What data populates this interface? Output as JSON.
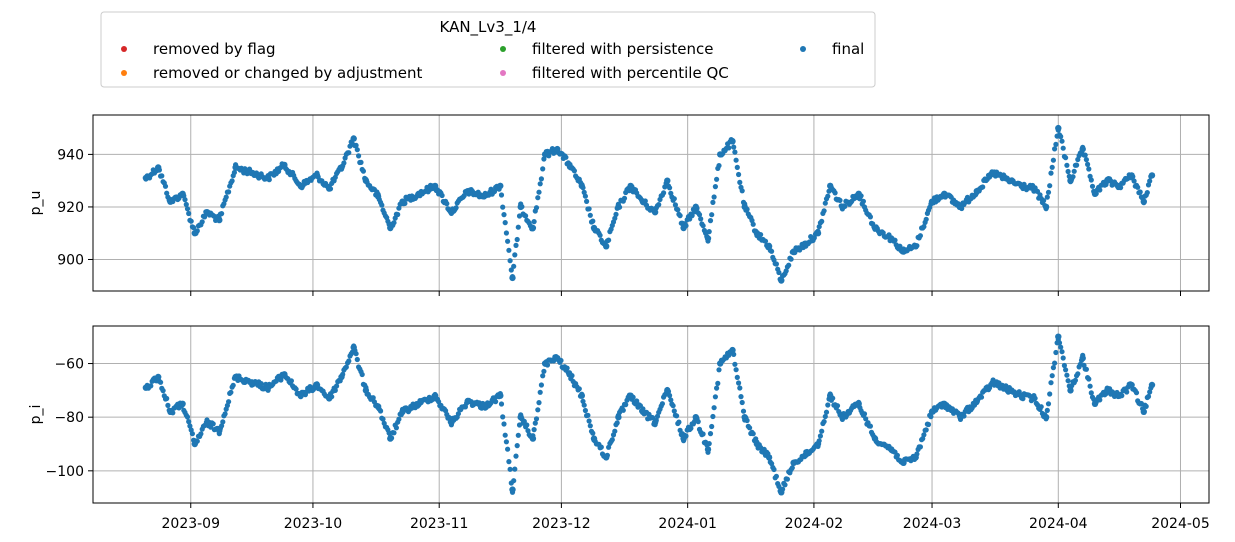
{
  "chart_data": {
    "type": "scatter",
    "legend": {
      "title": "KAN_Lv3_1/4",
      "placement": "top-left",
      "entries": [
        {
          "label": "removed by flag",
          "color": "#d62728"
        },
        {
          "label": "removed or changed by adjustment",
          "color": "#ff7f0e"
        },
        {
          "label": "filtered with persistence",
          "color": "#2ca02c"
        },
        {
          "label": "filtered with percentile QC",
          "color": "#e377c2"
        },
        {
          "label": "final",
          "color": "#1f77b4"
        }
      ]
    },
    "x_axis": {
      "type": "date",
      "range": [
        "2023-08-08",
        "2024-05-08"
      ],
      "tick_dates": [
        "2023-09-01",
        "2023-10-01",
        "2023-11-01",
        "2023-12-01",
        "2024-01-01",
        "2024-02-01",
        "2024-03-01",
        "2024-04-01",
        "2024-05-01"
      ],
      "tick_labels": [
        "2023-09",
        "2023-10",
        "2023-11",
        "2023-12",
        "2024-01",
        "2024-02",
        "2024-03",
        "2024-04",
        "2024-05"
      ]
    },
    "grid": true,
    "panels": [
      {
        "ylabel": "p_u",
        "ylim": [
          888,
          955
        ],
        "yticks": [
          900,
          920,
          940
        ],
        "ytick_labels": [
          "900",
          "920",
          "940"
        ],
        "series": [
          {
            "name": "final",
            "color": "#1f77b4",
            "x": [
              "2023-08-21",
              "2023-08-24",
              "2023-08-27",
              "2023-08-30",
              "2023-09-02",
              "2023-09-05",
              "2023-09-08",
              "2023-09-12",
              "2023-09-16",
              "2023-09-20",
              "2023-09-24",
              "2023-09-28",
              "2023-10-02",
              "2023-10-05",
              "2023-10-08",
              "2023-10-11",
              "2023-10-14",
              "2023-10-17",
              "2023-10-20",
              "2023-10-23",
              "2023-10-27",
              "2023-10-31",
              "2023-11-04",
              "2023-11-08",
              "2023-11-12",
              "2023-11-16",
              "2023-11-19",
              "2023-11-21",
              "2023-11-24",
              "2023-11-27",
              "2023-11-30",
              "2023-12-03",
              "2023-12-06",
              "2023-12-09",
              "2023-12-12",
              "2023-12-15",
              "2023-12-18",
              "2023-12-21",
              "2023-12-24",
              "2023-12-27",
              "2023-12-31",
              "2024-01-03",
              "2024-01-06",
              "2024-01-09",
              "2024-01-12",
              "2024-01-15",
              "2024-01-18",
              "2024-01-21",
              "2024-01-24",
              "2024-01-27",
              "2024-01-30",
              "2024-02-02",
              "2024-02-05",
              "2024-02-08",
              "2024-02-12",
              "2024-02-16",
              "2024-02-20",
              "2024-02-23",
              "2024-02-26",
              "2024-03-01",
              "2024-03-04",
              "2024-03-08",
              "2024-03-12",
              "2024-03-16",
              "2024-03-20",
              "2024-03-23",
              "2024-03-26",
              "2024-03-29",
              "2024-04-01",
              "2024-04-04",
              "2024-04-07",
              "2024-04-10",
              "2024-04-13",
              "2024-04-16",
              "2024-04-19",
              "2024-04-22",
              "2024-04-24"
            ],
            "y": [
              931,
              935,
              922,
              925,
              910,
              918,
              915,
              935,
              933,
              931,
              936,
              928,
              932,
              927,
              935,
              946,
              930,
              924,
              912,
              922,
              925,
              928,
              918,
              926,
              924,
              928,
              893,
              920,
              912,
              940,
              942,
              936,
              928,
              912,
              905,
              920,
              928,
              922,
              918,
              930,
              912,
              920,
              908,
              940,
              945,
              920,
              910,
              905,
              892,
              903,
              906,
              910,
              928,
              920,
              925,
              912,
              908,
              903,
              905,
              922,
              925,
              920,
              926,
              933,
              930,
              928,
              927,
              920,
              950,
              930,
              942,
              925,
              930,
              928,
              932,
              922,
              932
            ]
          }
        ]
      },
      {
        "ylabel": "p_i",
        "ylim": [
          -112,
          -46
        ],
        "yticks": [
          -100,
          -80,
          -60
        ],
        "ytick_labels": [
          "−100",
          "−80",
          "−60"
        ],
        "series": [
          {
            "name": "final",
            "color": "#1f77b4",
            "x": [
              "2023-08-21",
              "2023-08-24",
              "2023-08-27",
              "2023-08-30",
              "2023-09-02",
              "2023-09-05",
              "2023-09-08",
              "2023-09-12",
              "2023-09-16",
              "2023-09-20",
              "2023-09-24",
              "2023-09-28",
              "2023-10-02",
              "2023-10-05",
              "2023-10-08",
              "2023-10-11",
              "2023-10-14",
              "2023-10-17",
              "2023-10-20",
              "2023-10-23",
              "2023-10-27",
              "2023-10-31",
              "2023-11-04",
              "2023-11-08",
              "2023-11-12",
              "2023-11-16",
              "2023-11-19",
              "2023-11-21",
              "2023-11-24",
              "2023-11-27",
              "2023-11-30",
              "2023-12-03",
              "2023-12-06",
              "2023-12-09",
              "2023-12-12",
              "2023-12-15",
              "2023-12-18",
              "2023-12-21",
              "2023-12-24",
              "2023-12-27",
              "2023-12-31",
              "2024-01-03",
              "2024-01-06",
              "2024-01-09",
              "2024-01-12",
              "2024-01-15",
              "2024-01-18",
              "2024-01-21",
              "2024-01-24",
              "2024-01-27",
              "2024-01-30",
              "2024-02-02",
              "2024-02-05",
              "2024-02-08",
              "2024-02-12",
              "2024-02-16",
              "2024-02-20",
              "2024-02-23",
              "2024-02-26",
              "2024-03-01",
              "2024-03-04",
              "2024-03-08",
              "2024-03-12",
              "2024-03-16",
              "2024-03-20",
              "2024-03-23",
              "2024-03-26",
              "2024-03-29",
              "2024-04-01",
              "2024-04-04",
              "2024-04-07",
              "2024-04-10",
              "2024-04-13",
              "2024-04-16",
              "2024-04-19",
              "2024-04-22",
              "2024-04-24"
            ],
            "y": [
              -69,
              -65,
              -78,
              -75,
              -90,
              -82,
              -85,
              -65,
              -67,
              -69,
              -64,
              -72,
              -68,
              -73,
              -65,
              -54,
              -70,
              -76,
              -88,
              -78,
              -75,
              -72,
              -82,
              -74,
              -76,
              -72,
              -107,
              -80,
              -88,
              -60,
              -58,
              -64,
              -72,
              -88,
              -95,
              -80,
              -72,
              -78,
              -82,
              -70,
              -88,
              -80,
              -92,
              -60,
              -55,
              -80,
              -90,
              -95,
              -108,
              -97,
              -94,
              -90,
              -72,
              -80,
              -75,
              -88,
              -92,
              -97,
              -95,
              -78,
              -75,
              -80,
              -74,
              -67,
              -70,
              -72,
              -73,
              -80,
              -50,
              -70,
              -58,
              -75,
              -70,
              -72,
              -68,
              -78,
              -68
            ]
          }
        ]
      }
    ]
  }
}
